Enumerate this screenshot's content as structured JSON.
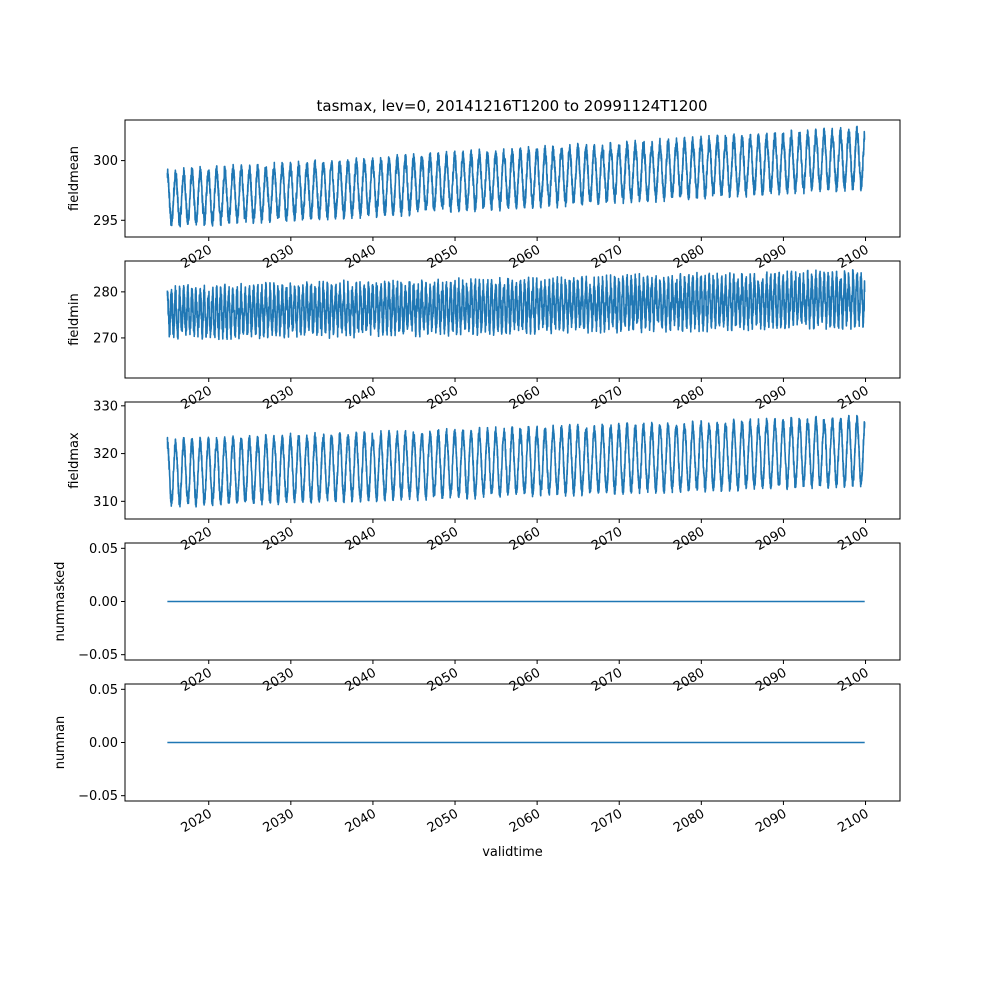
{
  "figure": {
    "title": "tasmax, lev=0, 20141216T1200 to 20991124T1200"
  },
  "chart_data": [
    {
      "type": "line",
      "ylabel": "fieldmean",
      "xlabel": "",
      "ylim": [
        293.6,
        303.4
      ],
      "yticks": [
        295,
        300
      ],
      "ytick_labels": [
        "295",
        "300"
      ],
      "xlim": [
        2009.8,
        2104.2
      ],
      "xticks": [
        2020,
        2030,
        2040,
        2050,
        2060,
        2070,
        2080,
        2090,
        2100
      ],
      "xtick_labels": [
        "2020",
        "2030",
        "2040",
        "2050",
        "2060",
        "2070",
        "2080",
        "2090",
        "2100"
      ],
      "series": [
        {
          "start_year": 2014.96,
          "end_year": 2099.9,
          "base_start": 296.8,
          "base_end": 300.2,
          "amp_start": 2.0,
          "amp_end": 2.2,
          "noise": 0.55,
          "cycles_per_year": 1,
          "color": "#1f77b4"
        }
      ]
    },
    {
      "type": "line",
      "ylabel": "fieldmin",
      "xlabel": "",
      "ylim": [
        261.3,
        286.7
      ],
      "yticks": [
        270,
        280
      ],
      "ytick_labels": [
        "270",
        "280"
      ],
      "xlim": [
        2009.8,
        2104.2
      ],
      "xticks": [
        2020,
        2030,
        2040,
        2050,
        2060,
        2070,
        2080,
        2090,
        2100
      ],
      "xtick_labels": [
        "2020",
        "2030",
        "2040",
        "2050",
        "2060",
        "2070",
        "2080",
        "2090",
        "2100"
      ],
      "series": [
        {
          "start_year": 2014.96,
          "end_year": 2099.9,
          "base_start": 275.5,
          "base_end": 278.5,
          "amp_start": 3.8,
          "amp_end": 4.2,
          "noise": 2.4,
          "cycles_per_year": 2,
          "color": "#1f77b4"
        }
      ]
    },
    {
      "type": "line",
      "ylabel": "fieldmax",
      "xlabel": "",
      "ylim": [
        306.3,
        330.8
      ],
      "yticks": [
        310,
        320,
        330
      ],
      "ytick_labels": [
        "310",
        "320",
        "330"
      ],
      "xlim": [
        2009.8,
        2104.2
      ],
      "xticks": [
        2020,
        2030,
        2040,
        2050,
        2060,
        2070,
        2080,
        2090,
        2100
      ],
      "xtick_labels": [
        "2020",
        "2030",
        "2040",
        "2050",
        "2060",
        "2070",
        "2080",
        "2090",
        "2100"
      ],
      "series": [
        {
          "start_year": 2014.96,
          "end_year": 2099.9,
          "base_start": 316.0,
          "base_end": 320.5,
          "amp_start": 6.2,
          "amp_end": 6.5,
          "noise": 1.2,
          "cycles_per_year": 1,
          "color": "#1f77b4"
        }
      ]
    },
    {
      "type": "line",
      "ylabel": "nummasked",
      "xlabel": "",
      "ylim": [
        -0.055,
        0.055
      ],
      "yticks": [
        -0.05,
        0.0,
        0.05
      ],
      "ytick_labels": [
        "−0.05",
        "0.00",
        "0.05"
      ],
      "xlim": [
        2009.8,
        2104.2
      ],
      "xticks": [
        2020,
        2030,
        2040,
        2050,
        2060,
        2070,
        2080,
        2090,
        2100
      ],
      "xtick_labels": [
        "2020",
        "2030",
        "2040",
        "2050",
        "2060",
        "2070",
        "2080",
        "2090",
        "2100"
      ],
      "series": [
        {
          "x": [
            2014.96,
            2099.9
          ],
          "y": [
            0,
            0
          ],
          "color": "#1f77b4"
        }
      ]
    },
    {
      "type": "line",
      "ylabel": "numnan",
      "xlabel": "validtime",
      "ylim": [
        -0.055,
        0.055
      ],
      "yticks": [
        -0.05,
        0.0,
        0.05
      ],
      "ytick_labels": [
        "−0.05",
        "0.00",
        "0.05"
      ],
      "xlim": [
        2009.8,
        2104.2
      ],
      "xticks": [
        2020,
        2030,
        2040,
        2050,
        2060,
        2070,
        2080,
        2090,
        2100
      ],
      "xtick_labels": [
        "2020",
        "2030",
        "2040",
        "2050",
        "2060",
        "2070",
        "2080",
        "2090",
        "2100"
      ],
      "series": [
        {
          "x": [
            2014.96,
            2099.9
          ],
          "y": [
            0,
            0
          ],
          "color": "#1f77b4"
        }
      ]
    }
  ]
}
